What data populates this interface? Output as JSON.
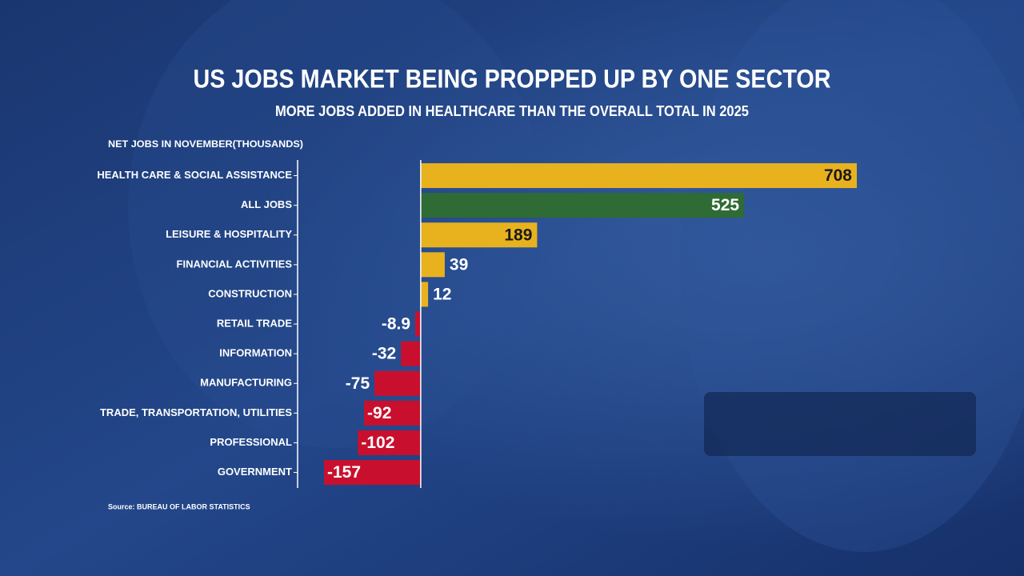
{
  "chart_data": {
    "type": "bar",
    "orientation": "horizontal",
    "title": "US JOBS MARKET BEING PROPPED UP BY ONE SECTOR",
    "subtitle": "MORE JOBS ADDED IN HEALTHCARE THAN THE OVERALL TOTAL IN 2025",
    "y_label": "NET JOBS IN NOVEMBER(THOUSANDS)",
    "source": "Source: BUREAU OF LABOR STATISTICS",
    "categories": [
      "HEALTH CARE & SOCIAL ASSISTANCE",
      "ALL JOBS",
      "LEISURE & HOSPITALITY",
      "FINANCIAL ACTIVITIES",
      "CONSTRUCTION",
      "RETAIL TRADE",
      "INFORMATION",
      "MANUFACTURING",
      "TRADE, TRANSPORTATION, UTILITIES",
      "PROFESSIONAL",
      "GOVERNMENT"
    ],
    "values": [
      708,
      525,
      189,
      39,
      12,
      -8.9,
      -32,
      -75,
      -92,
      -102,
      -157
    ],
    "colors": [
      "#e8b21f",
      "#2f6b34",
      "#e8b21f",
      "#e8b21f",
      "#e8b21f",
      "#c8102e",
      "#c8102e",
      "#c8102e",
      "#c8102e",
      "#c8102e",
      "#c8102e"
    ]
  }
}
